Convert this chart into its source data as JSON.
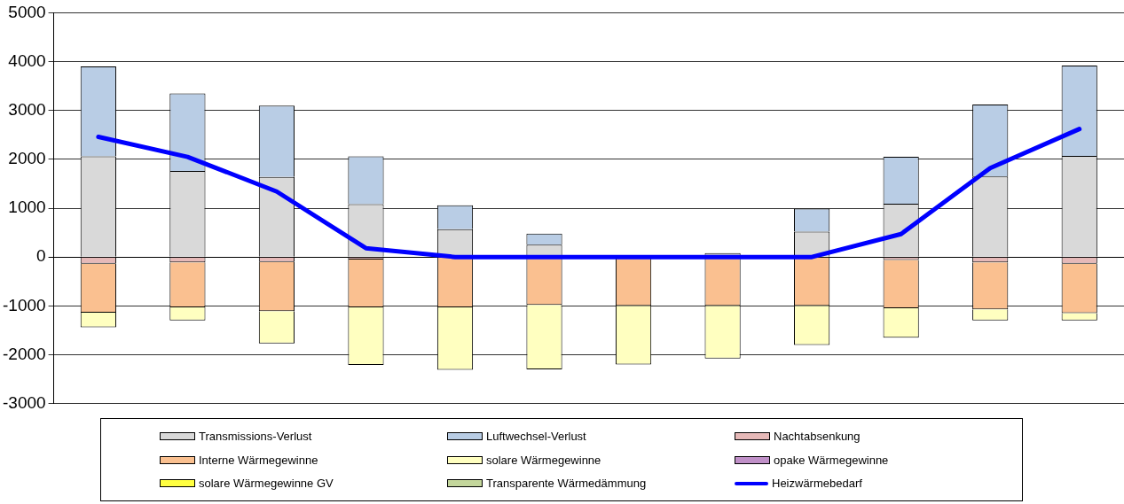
{
  "chart_data": {
    "type": "bar",
    "stacked": true,
    "categories": [
      null,
      null,
      null,
      null,
      null,
      null,
      null,
      null,
      null,
      null,
      null,
      null
    ],
    "ylim": [
      -3000,
      5000
    ],
    "yticks": [
      -3000,
      -2000,
      -1000,
      0,
      1000,
      2000,
      3000,
      4000,
      5000
    ],
    "grid": "y",
    "legend": "bottom",
    "series": [
      {
        "name": "Transmissions-Verlust",
        "color": "#d9d9d9",
        "values": [
          2060,
          1760,
          1640,
          1080,
          570,
          250,
          null,
          80,
          520,
          1090,
          1650,
          2070
        ]
      },
      {
        "name": "Luftwechsel-Verlust",
        "color": "#b9cde5",
        "values": [
          1840,
          1590,
          1460,
          980,
          490,
          230,
          null,
          null,
          470,
          960,
          1470,
          1850
        ]
      },
      {
        "name": "Nachtabsenkung",
        "color": "#e6b9b8",
        "values": [
          -140,
          -110,
          -100,
          -50,
          null,
          null,
          null,
          null,
          null,
          -60,
          -110,
          -140
        ]
      },
      {
        "name": "Interne Wärmegewinne",
        "color": "#fac090",
        "values": [
          -1000,
          -920,
          -1010,
          -980,
          -1030,
          -980,
          -1000,
          -1000,
          -1000,
          -990,
          -960,
          -1010
        ]
      },
      {
        "name": "solare Wärmegewinne",
        "color": "#ffffc0",
        "values": [
          -300,
          -270,
          -660,
          -1180,
          -1280,
          -1320,
          -1200,
          -1080,
          -800,
          -600,
          -230,
          -150
        ]
      },
      {
        "name": "opake Wärmegewinne",
        "color": "#c090c8",
        "values": [
          null,
          null,
          null,
          null,
          null,
          null,
          null,
          null,
          null,
          null,
          null,
          null
        ]
      },
      {
        "name": "solare Wärmegewinne GV",
        "color": "#ffff40",
        "values": [
          null,
          null,
          null,
          null,
          null,
          null,
          null,
          null,
          null,
          null,
          null,
          null
        ]
      },
      {
        "name": "Transparente Wärmedämmung",
        "color": "#c3d69b",
        "values": [
          null,
          null,
          null,
          null,
          null,
          null,
          null,
          null,
          null,
          null,
          null,
          null
        ]
      },
      {
        "name": "Heizwärmebedarf",
        "type": "line",
        "color": "#0000ff",
        "marker": "none",
        "values": [
          2460,
          2050,
          1340,
          180,
          0,
          0,
          0,
          0,
          0,
          470,
          1820,
          2620
        ]
      }
    ]
  }
}
